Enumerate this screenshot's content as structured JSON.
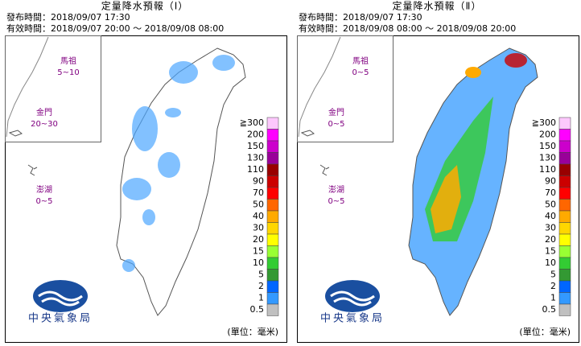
{
  "panels": [
    {
      "title": "定量降水預報（Ⅰ）",
      "issued": "發布時間：2018/09/07 17:30",
      "valid": "有效時間：2018/09/07 20:00 ～ 2018/09/08 08:00",
      "islands": [
        {
          "name": "馬祖",
          "range": "5~10"
        },
        {
          "name": "金門",
          "range": "20~30"
        },
        {
          "name": "澎湖",
          "range": "0~5"
        }
      ]
    },
    {
      "title": "定量降水預報（Ⅱ）",
      "issued": "發布時間：2018/09/07 17:30",
      "valid": "有效時間：2018/09/08 08:00 ～ 2018/09/08 20:00",
      "islands": [
        {
          "name": "馬祖",
          "range": "0~5"
        },
        {
          "name": "金門",
          "range": "0~5"
        },
        {
          "name": "澎湖",
          "range": "0~5"
        }
      ]
    }
  ],
  "legend": {
    "labels": [
      "≧300",
      "200",
      "150",
      "130",
      "110",
      "90",
      "70",
      "50",
      "40",
      "30",
      "20",
      "15",
      "10",
      "5",
      "2",
      "1",
      "0.5"
    ],
    "colors": [
      "#fdc8fd",
      "#ff00ff",
      "#cc00cc",
      "#990099",
      "#990000",
      "#cc0000",
      "#ff0000",
      "#ff6600",
      "#ffaa00",
      "#ffd700",
      "#ffff00",
      "#99ff33",
      "#33cc33",
      "#339933",
      "#0066ff",
      "#3399ff",
      "#c0c0c0"
    ],
    "unit": "(單位：毫米)"
  },
  "logo_text": "中央氣象局"
}
